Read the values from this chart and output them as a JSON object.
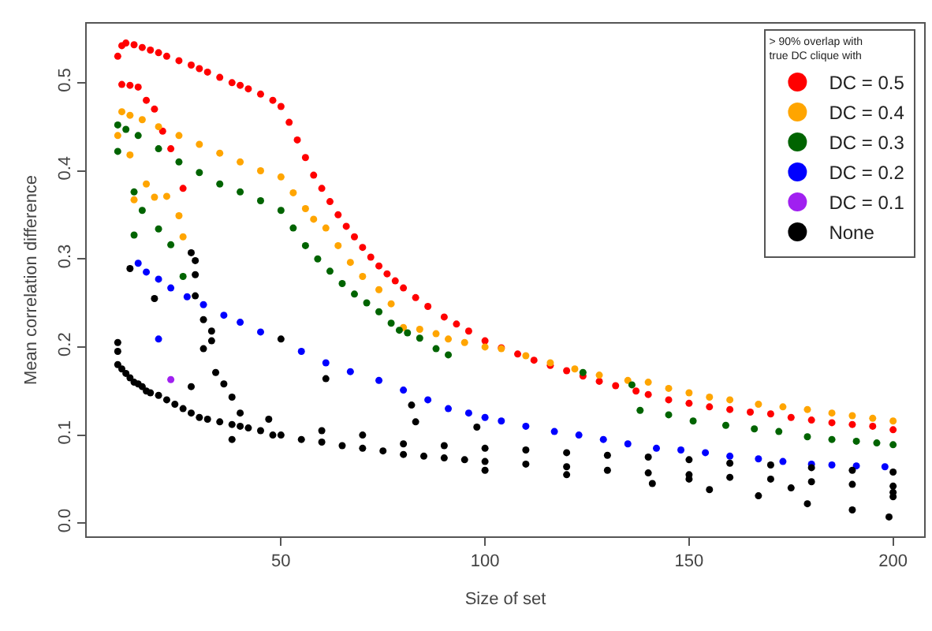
{
  "chart_data": {
    "type": "scatter",
    "xlabel": "Size of set",
    "ylabel": "Mean correlation difference",
    "legend_title": "> 90% overlap with\ntrue DC clique with",
    "legend": "top right",
    "grid": false,
    "marker": "circle",
    "xlim": [
      2.4,
      207.6
    ],
    "ylim": [
      -0.015,
      0.567
    ],
    "xticks": [
      50,
      100,
      150,
      200
    ],
    "yticks": [
      {
        "value": 0,
        "label": "0.0"
      },
      0.1,
      0.2,
      0.3,
      0.4,
      0.5
    ],
    "series": [
      {
        "name": "DC = 0.5",
        "color": "#ff0000",
        "x": [
          10,
          11,
          12,
          14,
          16,
          18,
          20,
          22,
          25,
          28,
          30,
          32,
          35,
          38,
          40,
          42,
          45,
          48,
          50,
          52,
          54,
          56,
          58,
          60,
          62,
          64,
          66,
          68,
          70,
          72,
          74,
          76,
          78,
          80,
          83,
          86,
          90,
          93,
          96,
          100,
          104,
          108,
          112,
          116,
          120,
          124,
          128,
          132,
          137,
          140,
          145,
          150,
          155,
          160,
          165,
          170,
          175,
          180,
          185,
          190,
          195,
          200,
          11,
          13,
          15,
          17,
          19,
          21,
          23,
          26
        ],
        "values": [
          0.53,
          0.542,
          0.545,
          0.543,
          0.54,
          0.537,
          0.534,
          0.53,
          0.525,
          0.52,
          0.516,
          0.512,
          0.506,
          0.5,
          0.497,
          0.493,
          0.487,
          0.48,
          0.473,
          0.455,
          0.435,
          0.415,
          0.395,
          0.38,
          0.365,
          0.35,
          0.337,
          0.325,
          0.313,
          0.302,
          0.292,
          0.283,
          0.275,
          0.267,
          0.256,
          0.246,
          0.234,
          0.226,
          0.218,
          0.207,
          0.199,
          0.192,
          0.185,
          0.179,
          0.173,
          0.167,
          0.161,
          0.156,
          0.15,
          0.146,
          0.14,
          0.136,
          0.132,
          0.129,
          0.126,
          0.124,
          0.12,
          0.117,
          0.114,
          0.112,
          0.11,
          0.106,
          0.498,
          0.497,
          0.495,
          0.48,
          0.47,
          0.445,
          0.425,
          0.38
        ]
      },
      {
        "name": "DC = 0.4",
        "color": "#ffa500",
        "x": [
          11,
          13,
          16,
          20,
          25,
          30,
          35,
          40,
          45,
          50,
          53,
          56,
          58,
          61,
          64,
          67,
          70,
          74,
          77,
          80,
          84,
          88,
          91,
          95,
          100,
          104,
          110,
          116,
          122,
          128,
          135,
          140,
          145,
          150,
          155,
          160,
          167,
          173,
          179,
          185,
          190,
          195,
          200,
          10,
          13,
          14,
          17,
          19,
          22,
          25,
          26
        ],
        "values": [
          0.467,
          0.463,
          0.458,
          0.45,
          0.44,
          0.43,
          0.42,
          0.41,
          0.4,
          0.393,
          0.375,
          0.357,
          0.345,
          0.335,
          0.315,
          0.296,
          0.28,
          0.265,
          0.249,
          0.222,
          0.22,
          0.215,
          0.209,
          0.205,
          0.2,
          0.198,
          0.19,
          0.182,
          0.175,
          0.168,
          0.162,
          0.16,
          0.153,
          0.148,
          0.143,
          0.14,
          0.135,
          0.132,
          0.129,
          0.125,
          0.122,
          0.119,
          0.116,
          0.44,
          0.418,
          0.367,
          0.385,
          0.37,
          0.371,
          0.349,
          0.325
        ]
      },
      {
        "name": "DC = 0.3",
        "color": "#006400",
        "x": [
          10,
          12,
          15,
          20,
          25,
          30,
          35,
          40,
          45,
          50,
          53,
          56,
          59,
          62,
          65,
          68,
          71,
          74,
          77,
          79,
          81,
          84,
          88,
          91,
          124,
          136,
          138,
          145,
          151,
          159,
          166,
          172,
          179,
          185,
          191,
          196,
          200,
          10,
          14,
          14,
          16,
          20,
          23,
          26
        ],
        "values": [
          0.452,
          0.447,
          0.44,
          0.425,
          0.41,
          0.398,
          0.385,
          0.376,
          0.366,
          0.355,
          0.335,
          0.315,
          0.3,
          0.286,
          0.272,
          0.26,
          0.25,
          0.24,
          0.227,
          0.219,
          0.216,
          0.21,
          0.198,
          0.191,
          0.171,
          0.157,
          0.128,
          0.123,
          0.116,
          0.111,
          0.107,
          0.104,
          0.098,
          0.095,
          0.093,
          0.091,
          0.089,
          0.422,
          0.376,
          0.327,
          0.355,
          0.334,
          0.316,
          0.28
        ]
      },
      {
        "name": "DC = 0.2",
        "color": "#0000ff",
        "x": [
          15,
          17,
          20,
          23,
          27,
          31,
          36,
          40,
          45,
          55,
          61,
          67,
          74,
          80,
          86,
          91,
          96,
          100,
          104,
          110,
          117,
          123,
          129,
          135,
          142,
          148,
          154,
          160,
          167,
          173,
          180,
          185,
          191,
          198,
          20
        ],
        "values": [
          0.295,
          0.285,
          0.277,
          0.267,
          0.257,
          0.248,
          0.236,
          0.228,
          0.217,
          0.195,
          0.182,
          0.172,
          0.162,
          0.151,
          0.14,
          0.13,
          0.125,
          0.12,
          0.116,
          0.11,
          0.104,
          0.1,
          0.095,
          0.09,
          0.085,
          0.083,
          0.08,
          0.076,
          0.073,
          0.07,
          0.067,
          0.066,
          0.065,
          0.064,
          0.209
        ]
      },
      {
        "name": "DC = 0.1",
        "color": "#a020f0",
        "x": [
          23
        ],
        "values": [
          0.163
        ]
      },
      {
        "name": "None",
        "color": "#000000",
        "x": [
          10,
          10,
          10,
          11,
          12,
          13,
          14,
          15,
          16,
          17,
          18,
          20,
          22,
          24,
          26,
          28,
          30,
          32,
          35,
          38,
          40,
          42,
          45,
          48,
          50,
          55,
          60,
          65,
          70,
          75,
          80,
          85,
          90,
          95,
          100,
          110,
          120,
          130,
          140,
          150,
          160,
          170,
          180,
          190,
          200,
          60,
          70,
          80,
          90,
          100,
          110,
          120,
          130,
          140,
          150,
          160,
          170,
          180,
          190,
          200,
          100,
          120,
          141,
          155,
          167,
          179,
          190,
          199,
          150,
          175,
          200,
          200,
          28,
          29,
          29,
          29,
          31,
          33,
          33,
          31,
          34,
          36,
          38,
          40,
          38,
          13,
          19,
          28,
          47,
          50,
          61,
          82,
          83,
          98
        ],
        "values": [
          0.205,
          0.195,
          0.18,
          0.175,
          0.17,
          0.165,
          0.16,
          0.158,
          0.155,
          0.15,
          0.148,
          0.145,
          0.14,
          0.135,
          0.13,
          0.125,
          0.12,
          0.118,
          0.115,
          0.112,
          0.11,
          0.108,
          0.105,
          0.1,
          0.1,
          0.095,
          0.092,
          0.088,
          0.085,
          0.082,
          0.078,
          0.076,
          0.074,
          0.072,
          0.07,
          0.067,
          0.064,
          0.06,
          0.057,
          0.055,
          0.052,
          0.05,
          0.047,
          0.044,
          0.042,
          0.105,
          0.1,
          0.09,
          0.088,
          0.085,
          0.083,
          0.08,
          0.077,
          0.075,
          0.072,
          0.068,
          0.066,
          0.063,
          0.06,
          0.058,
          0.06,
          0.055,
          0.045,
          0.038,
          0.031,
          0.022,
          0.015,
          0.007,
          0.05,
          0.04,
          0.03,
          0.035,
          0.307,
          0.298,
          0.282,
          0.258,
          0.231,
          0.218,
          0.207,
          0.198,
          0.171,
          0.158,
          0.143,
          0.125,
          0.095,
          0.289,
          0.255,
          0.155,
          0.118,
          0.209,
          0.164,
          0.134,
          0.115,
          0.109
        ]
      }
    ]
  }
}
